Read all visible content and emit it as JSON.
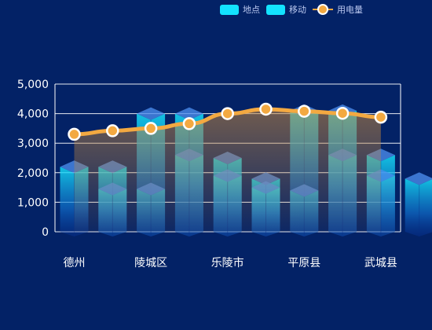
{
  "legend": {
    "location_label": "地点",
    "mobile_label": "移动",
    "power_label": "用电量"
  },
  "colors": {
    "background": "#032266",
    "bar_top": "#17e8ff",
    "bar_bottom": "#0a3aa6",
    "line": "#f3a941",
    "axis": "#ffffff"
  },
  "chart_data": {
    "type": "bar",
    "title": "",
    "xlabel": "",
    "ylabel": "",
    "ylim": [
      0,
      5000
    ],
    "yticks": [
      0,
      1000,
      2000,
      3000,
      4000,
      5000
    ],
    "ytick_labels": [
      "0",
      "1,000",
      "2,000",
      "3,000",
      "4,000",
      "5,000"
    ],
    "categories": [
      "德州",
      "",
      "陵城区",
      "",
      "乐陵市",
      "",
      "平原县",
      "",
      "武城县",
      ""
    ],
    "visible_category_labels": [
      "德州",
      "陵城区",
      "乐陵市",
      "平原县",
      "武城县"
    ],
    "series": [
      {
        "name": "地点",
        "type": "bar",
        "values": [
          2200,
          2200,
          4000,
          4000,
          2500,
          1800,
          4100,
          4100,
          2600,
          1800
        ]
      },
      {
        "name": "移动",
        "type": "bar",
        "values": [
          0,
          1450,
          1450,
          2600,
          1900,
          1500,
          1400,
          2600,
          1900,
          0
        ]
      },
      {
        "name": "用电量",
        "type": "line",
        "values": [
          3300,
          3420,
          3500,
          3660,
          4000,
          4150,
          4080,
          4010,
          3880,
          null
        ]
      }
    ]
  }
}
